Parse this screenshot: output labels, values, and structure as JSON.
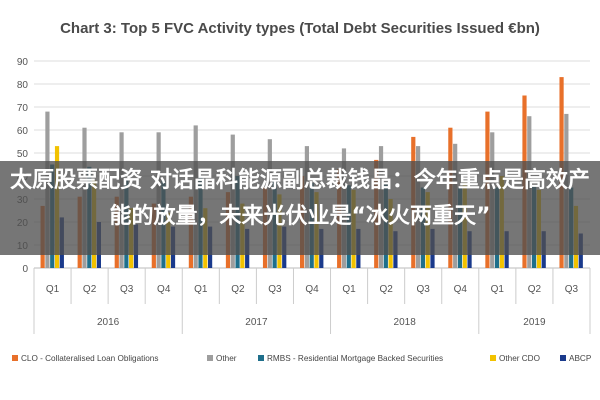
{
  "chart_data": {
    "type": "bar",
    "title": "Chart 3: Top 5 FVC Activity types (Total Debt Securities Issued €bn)",
    "ylim": [
      0,
      90
    ],
    "yticks": [
      0,
      10,
      20,
      30,
      40,
      50,
      60,
      70,
      80,
      90
    ],
    "grid": true,
    "legend_position": "bottom",
    "categories": [
      "Q1",
      "Q2",
      "Q3",
      "Q4",
      "Q1",
      "Q2",
      "Q3",
      "Q4",
      "Q1",
      "Q2",
      "Q3",
      "Q4",
      "Q1",
      "Q2",
      "Q3"
    ],
    "groups": [
      {
        "label": "2016",
        "start": 0,
        "count": 4
      },
      {
        "label": "2017",
        "start": 4,
        "count": 4
      },
      {
        "label": "2018",
        "start": 8,
        "count": 4
      },
      {
        "label": "2019",
        "start": 12,
        "count": 3
      }
    ],
    "series": [
      {
        "name": "CLO - Collateralised Loan Obligations",
        "color": "#e8702a",
        "values": [
          27,
          31,
          31,
          28,
          31,
          33,
          35,
          40,
          43,
          47,
          57,
          61,
          68,
          75,
          83
        ]
      },
      {
        "name": "Other",
        "color": "#9e9e9e",
        "values": [
          68,
          61,
          59,
          59,
          62,
          58,
          56,
          53,
          52,
          53,
          53,
          54,
          59,
          66,
          67
        ]
      },
      {
        "name": "RMBS - Residential Mortgage Backed Securities",
        "color": "#1f6f8b",
        "values": [
          45,
          44,
          39,
          38,
          40,
          40,
          38,
          37,
          36,
          37,
          35,
          35,
          35,
          36,
          35
        ]
      },
      {
        "name": "Other CDO",
        "color": "#f2c200",
        "values": [
          53,
          38,
          26,
          24,
          26,
          28,
          32,
          33,
          34,
          30,
          33,
          37,
          40,
          34,
          27
        ]
      },
      {
        "name": "ABCP",
        "color": "#1a3a8c",
        "values": [
          22,
          20,
          19,
          18,
          18,
          17,
          18,
          17,
          17,
          16,
          17,
          16,
          16,
          16,
          15
        ]
      }
    ]
  },
  "overlay": {
    "headline": "太原股票配资 对话晶科能源副总裁钱晶：今年重点是高效产能的放量，未来光伏业是“冰火两重天”"
  }
}
